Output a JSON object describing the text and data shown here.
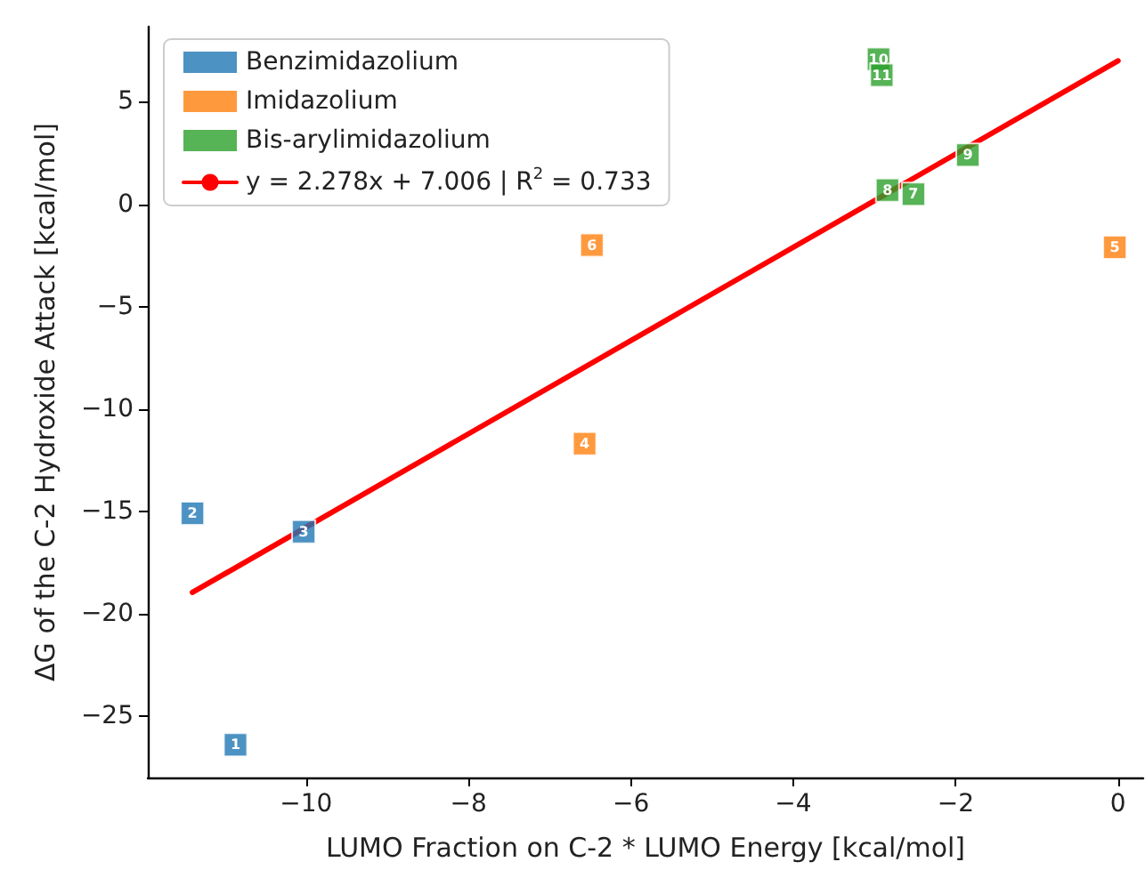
{
  "chart_data": {
    "type": "scatter",
    "xlabel": "LUMO Fraction on C-2 * LUMO Energy [kcal/mol]",
    "ylabel": "ΔG of the C-2 Hydroxide Attack [kcal/mol]",
    "xlim": [
      -11.95,
      0.31
    ],
    "ylim": [
      -28,
      8.67
    ],
    "xticks": [
      {
        "value": -10,
        "label": "−10"
      },
      {
        "value": -8,
        "label": "−8"
      },
      {
        "value": -6,
        "label": "−6"
      },
      {
        "value": -4,
        "label": "−4"
      },
      {
        "value": -2,
        "label": "−2"
      },
      0
    ],
    "yticks": [
      {
        "value": -25,
        "label": "−25"
      },
      {
        "value": -20,
        "label": "−20"
      },
      {
        "value": -15,
        "label": "−15"
      },
      {
        "value": -10,
        "label": "−10"
      },
      {
        "value": -5,
        "label": "−5"
      },
      0,
      5
    ],
    "grid": false,
    "legend": "top left",
    "marker": "square",
    "series": [
      {
        "name": "Benzimidazolium",
        "color": "#1f77b4",
        "x": [
          -10.87,
          -11.4,
          -10.03
        ],
        "values": [
          -26.4,
          -15.1,
          -16.0
        ]
      },
      {
        "name": "Imidazolium",
        "color": "#ff7f0e",
        "x": [
          -6.57,
          -0.04,
          -6.48
        ],
        "values": [
          -11.7,
          -2.1,
          -2.0
        ]
      },
      {
        "name": "Bis-arylimidazolium",
        "color": "#2ca02c",
        "x": [
          -2.52,
          -2.84,
          -1.85,
          -2.95,
          -2.91
        ],
        "values": [
          0.49,
          0.69,
          2.4,
          7.08,
          6.3
        ]
      },
      {
        "name": "y = 2.278x + 7.006 | R$^{2}$ = 0.733",
        "type": "line",
        "color": "#ff0000",
        "marker": "none",
        "line_style": "solid",
        "x": [
          -11.4,
          0
        ],
        "values": [
          -18.96,
          7.006
        ]
      }
    ],
    "annotations": [
      {
        "text": "1",
        "x": -10.87,
        "y": -26.4
      },
      {
        "text": "2",
        "x": -11.4,
        "y": -15.1
      },
      {
        "text": "3",
        "x": -10.03,
        "y": -16.0
      },
      {
        "text": "4",
        "x": -6.57,
        "y": -11.7
      },
      {
        "text": "5",
        "x": -0.04,
        "y": -2.1
      },
      {
        "text": "6",
        "x": -6.48,
        "y": -2.0
      },
      {
        "text": "7",
        "x": -2.52,
        "y": 0.49
      },
      {
        "text": "8",
        "x": -2.84,
        "y": 0.69
      },
      {
        "text": "9",
        "x": -1.85,
        "y": 2.4
      },
      {
        "text": "10",
        "x": -2.95,
        "y": 7.08
      },
      {
        "text": "11",
        "x": -2.91,
        "y": 6.3
      }
    ]
  }
}
